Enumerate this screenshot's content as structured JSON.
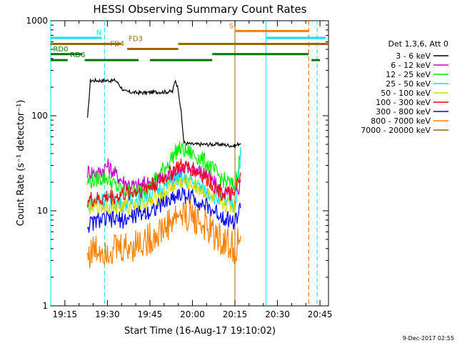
{
  "chart_data": {
    "type": "line",
    "title": "HESSI Observing Summary Count Rates",
    "xlabel": "Start Time (16-Aug-17 19:10:02)",
    "ylabel": "Count Rate (s⁻¹ detector⁻¹)",
    "y_scale": "log",
    "ylim": [
      1,
      1000
    ],
    "xlim": [
      "19:10",
      "20:48"
    ],
    "x_ticks": [
      "19:15",
      "19:30",
      "19:45",
      "20:00",
      "20:15",
      "20:30",
      "20:45"
    ],
    "y_ticks": [
      "1",
      "10",
      "100",
      "1000"
    ],
    "legend_header": "Det 1,3,6, Att 0",
    "legend_position": "right",
    "grid": false,
    "series": [
      {
        "name": "3 - 6 keV",
        "color": "#000000",
        "x": [
          "19:23",
          "19:24",
          "19:27",
          "19:30",
          "19:33",
          "19:36",
          "19:40",
          "19:44",
          "19:47",
          "19:50",
          "19:53",
          "19:54",
          "19:55",
          "19:56",
          "19:57",
          "20:00",
          "20:05",
          "20:10",
          "20:15",
          "20:17"
        ],
        "y": [
          92,
          235,
          235,
          235,
          235,
          180,
          175,
          175,
          178,
          178,
          180,
          240,
          190,
          110,
          52,
          50,
          50,
          50,
          48,
          52
        ]
      },
      {
        "name": "6 - 12 keV",
        "color": "#cc00cc",
        "x": [
          "19:23",
          "19:27",
          "19:30",
          "19:33",
          "19:36",
          "19:40",
          "19:45",
          "19:50",
          "19:55",
          "20:00",
          "20:05",
          "20:10",
          "20:15",
          "20:17"
        ],
        "y": [
          26,
          25,
          30,
          24,
          20,
          18,
          20,
          22,
          26,
          28,
          24,
          16,
          14,
          20
        ]
      },
      {
        "name": "12 - 25 keV",
        "color": "#00ee00",
        "x": [
          "19:23",
          "19:27",
          "19:30",
          "19:33",
          "19:36",
          "19:40",
          "19:45",
          "19:50",
          "19:55",
          "20:00",
          "20:05",
          "20:10",
          "20:15",
          "20:17"
        ],
        "y": [
          20,
          22,
          22,
          18,
          16,
          16,
          18,
          28,
          45,
          40,
          32,
          22,
          18,
          40
        ]
      },
      {
        "name": "25 - 50 keV",
        "color": "#00e5ee",
        "x": [
          "19:23",
          "19:27",
          "19:30",
          "19:33",
          "19:36",
          "19:40",
          "19:45",
          "19:50",
          "19:55",
          "20:00",
          "20:05",
          "20:10",
          "20:15",
          "20:17"
        ],
        "y": [
          12,
          13,
          13,
          12,
          12,
          13,
          15,
          18,
          22,
          20,
          16,
          13,
          11,
          40
        ]
      },
      {
        "name": "50 - 100 keV",
        "color": "#d8d800",
        "x": [
          "19:23",
          "19:30",
          "19:40",
          "19:45",
          "19:50",
          "19:55",
          "20:00",
          "20:05",
          "20:10",
          "20:15"
        ],
        "y": [
          11,
          11,
          11,
          12,
          15,
          20,
          19,
          15,
          12,
          11
        ]
      },
      {
        "name": "100 - 300 keV",
        "color": "#ff0000",
        "x": [
          "19:23",
          "19:27",
          "19:30",
          "19:33",
          "19:36",
          "19:40",
          "19:45",
          "19:50",
          "19:55",
          "20:00",
          "20:05",
          "20:10",
          "20:15",
          "20:17"
        ],
        "y": [
          13,
          13,
          14,
          14,
          15,
          16,
          18,
          22,
          29,
          28,
          22,
          16,
          14,
          28
        ]
      },
      {
        "name": "300 - 800 keV",
        "color": "#0000ff",
        "x": [
          "19:23",
          "19:27",
          "19:30",
          "19:33",
          "19:36",
          "19:40",
          "19:45",
          "19:50",
          "19:55",
          "20:00",
          "20:05",
          "20:10",
          "20:15",
          "20:17"
        ],
        "y": [
          7,
          8,
          8,
          8,
          8,
          9,
          10,
          12,
          15,
          14,
          11,
          9,
          7.5,
          11
        ]
      },
      {
        "name": "800 - 7000 keV",
        "color": "#ff8000",
        "x": [
          "19:23",
          "19:27",
          "19:30",
          "19:33",
          "19:36",
          "19:40",
          "19:45",
          "19:50",
          "19:55",
          "20:00",
          "20:05",
          "20:10",
          "20:15",
          "20:17"
        ],
        "y": [
          3.5,
          4,
          4,
          4,
          4,
          4.5,
          5,
          6.5,
          9,
          9,
          6.5,
          5,
          4,
          5
        ]
      },
      {
        "name": "7000 - 20000 keV",
        "color": "#996600",
        "x": [],
        "y": []
      }
    ],
    "vertical_lines": [
      {
        "x": "19:10",
        "color": "#00e5ee",
        "dashed": false
      },
      {
        "x": "19:29",
        "color": "#00e5ee",
        "dashed": true
      },
      {
        "x": "20:15",
        "color": "#996600",
        "dashed": false
      },
      {
        "x": "20:26",
        "color": "#00e5ee",
        "dashed": false
      },
      {
        "x": "20:41",
        "color": "#d86400",
        "dashed": true
      },
      {
        "x": "20:44",
        "color": "#00e5ee",
        "dashed": true
      }
    ],
    "segments": [
      {
        "label": "N",
        "color": "#00e5ee",
        "y": 660,
        "ranges": [
          [
            "19:10",
            "19:28"
          ],
          [
            "20:26",
            "20:47"
          ]
        ]
      },
      {
        "label": "S",
        "color": "#ff8000",
        "y": 780,
        "ranges": [
          [
            "20:15",
            "20:41"
          ]
        ]
      },
      {
        "label": "FD3",
        "color": "#996600",
        "y": 570,
        "ranges": [
          [
            "19:10",
            "19:35"
          ],
          [
            "19:55",
            "20:48"
          ]
        ]
      },
      {
        "label": "FD4",
        "color": "#996600",
        "y": 505,
        "ranges": [
          [
            "19:37",
            "19:55"
          ]
        ]
      },
      {
        "label": "RD0",
        "color": "#007700",
        "y": 445,
        "ranges": [
          [
            "19:10",
            "19:21"
          ],
          [
            "20:07",
            "20:41"
          ]
        ]
      },
      {
        "label": "RD6",
        "color": "#007700",
        "y": 385,
        "ranges": [
          [
            "19:10",
            "19:16"
          ],
          [
            "19:22",
            "19:41"
          ],
          [
            "19:45",
            "20:07"
          ],
          [
            "20:42",
            "20:45"
          ]
        ]
      }
    ]
  },
  "footer": {
    "timestamp": "9-Dec-2017 02:55"
  }
}
